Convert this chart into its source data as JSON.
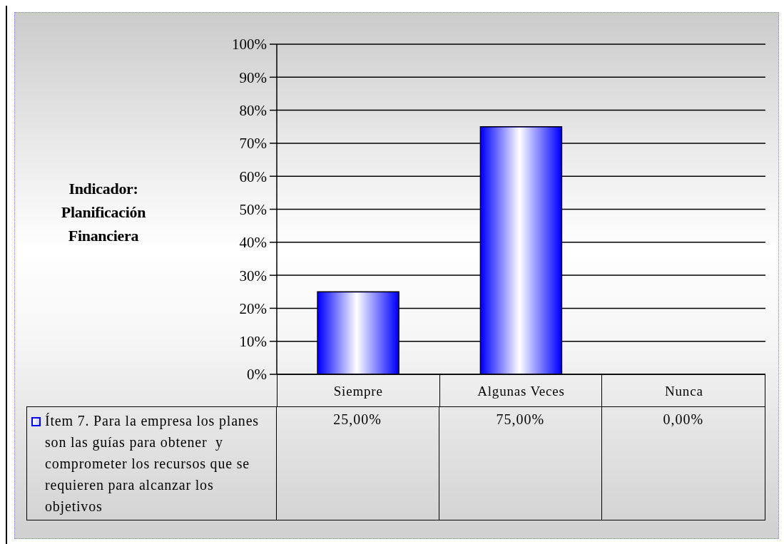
{
  "chart_data": {
    "type": "bar",
    "annotations": [
      "Indicador: Planificación Financiera"
    ],
    "categories": [
      "Siempre",
      "Algunas Veces",
      "Nunca"
    ],
    "series": [
      {
        "name": "Ítem 7. Para la empresa los planes son las guías para obtener  y comprometer los recursos que se requieren para alcanzar los objetivos",
        "color": "#0000ff",
        "values": [
          25,
          75,
          0
        ],
        "value_labels": [
          "25,00%",
          "75,00%",
          "0,00%"
        ]
      }
    ],
    "ylim": [
      0,
      100
    ],
    "yticks": [
      {
        "value": 0,
        "label": "0%"
      },
      {
        "value": 10,
        "label": "10%"
      },
      {
        "value": 20,
        "label": "20%"
      },
      {
        "value": 30,
        "label": "30%"
      },
      {
        "value": 40,
        "label": "40%"
      },
      {
        "value": 50,
        "label": "50%"
      },
      {
        "value": 60,
        "label": "60%"
      },
      {
        "value": 70,
        "label": "70%"
      },
      {
        "value": 80,
        "label": "80%"
      },
      {
        "value": 90,
        "label": "90%"
      },
      {
        "value": 100,
        "label": "100%"
      }
    ],
    "grid": "y",
    "legend": "bottom left"
  }
}
